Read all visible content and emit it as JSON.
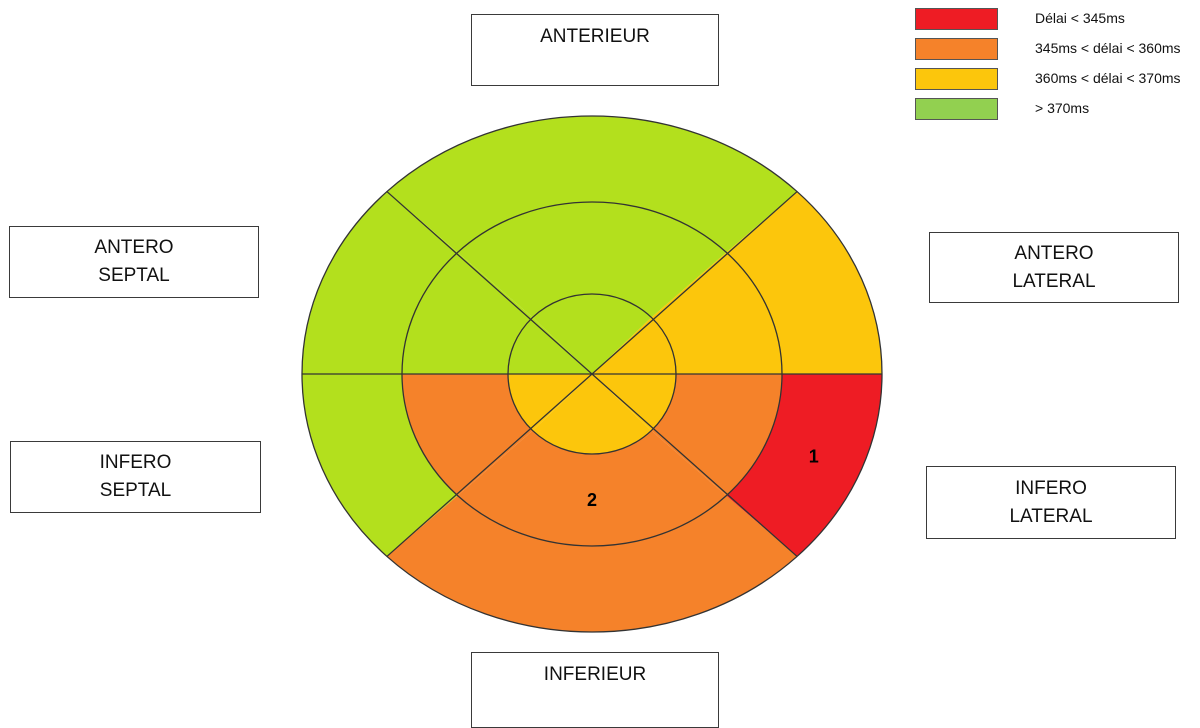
{
  "regions": {
    "anterieur": [
      "ANTERIEUR"
    ],
    "antero_septal": [
      "ANTERO",
      "SEPTAL"
    ],
    "antero_lateral": [
      "ANTERO",
      "LATERAL"
    ],
    "infero_septal": [
      "INFERO",
      "SEPTAL"
    ],
    "infero_lateral": [
      "INFERO",
      "LATERAL"
    ],
    "inferieur": [
      "INFERIEUR"
    ]
  },
  "legend": [
    {
      "label": "Délai < 345ms",
      "color": "#ee1c24"
    },
    {
      "label": "345ms < délai < 360ms",
      "color": "#f5822a"
    },
    {
      "label": "360ms < délai < 370ms",
      "color": "#fcc60c"
    },
    {
      "label": "> 370ms",
      "color": "#92d050"
    }
  ],
  "colors": {
    "red": "#ee1c24",
    "orange": "#f5822a",
    "yellow": "#fcc60c",
    "green": "#b3e01d"
  },
  "segments": {
    "outer": {
      "anterior": "green",
      "anterolateral": "yellow",
      "inferolateral": "red",
      "inferior": "orange",
      "inferoseptal": "green",
      "anteroseptal": "green"
    },
    "middle": {
      "anterior": "green",
      "anterolateral": "yellow",
      "inferolateral": "orange",
      "inferior": "orange",
      "inferoseptal": "orange",
      "anteroseptal": "green"
    },
    "inner": {
      "anterior": "green",
      "anterolateral": "yellow",
      "inferolateral": "yellow",
      "inferior": "yellow",
      "inferoseptal": "yellow",
      "anteroseptal": "green"
    }
  },
  "segment_labels": [
    {
      "text": "1",
      "ring": "outer",
      "segment": "inferolateral"
    },
    {
      "text": "2",
      "ring": "middle",
      "segment": "inferior"
    }
  ]
}
